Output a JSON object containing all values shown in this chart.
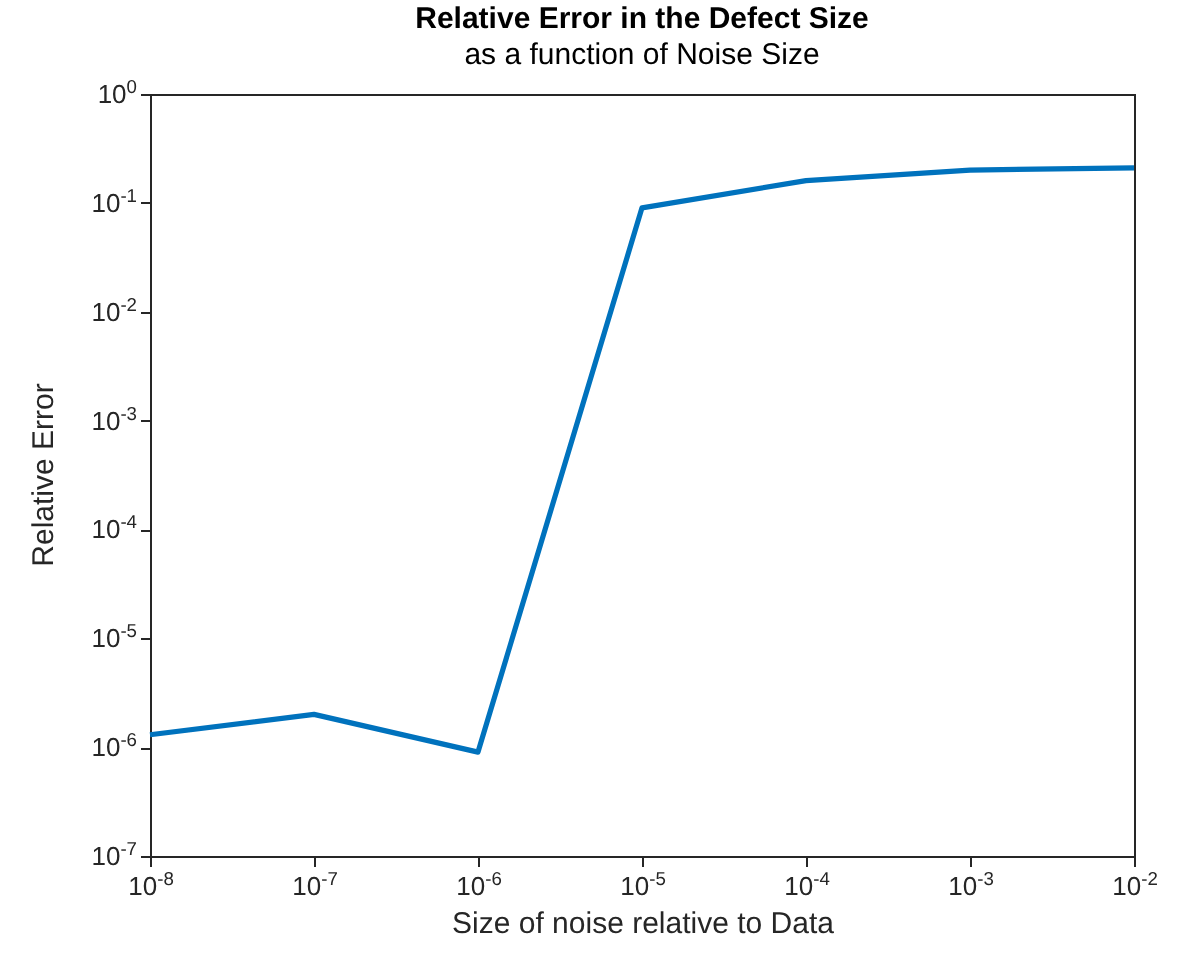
{
  "chart_data": {
    "type": "line",
    "title": "Relative Error in the Defect Size",
    "subtitle": "as a function of Noise Size",
    "xlabel": "Size of noise relative to Data",
    "ylabel": "Relative Error",
    "log": "xy",
    "grid": false,
    "marker": "none",
    "line_style": "solid",
    "x": [
      1e-08,
      1e-07,
      1e-06,
      1e-05,
      0.0001,
      0.001,
      0.01
    ],
    "series": [
      {
        "color": "#0072bd",
        "values": [
          1.3e-06,
          2e-06,
          9e-07,
          0.09,
          0.16,
          0.2,
          0.21
        ]
      }
    ],
    "xlim": [
      1e-08,
      0.01
    ],
    "ylim": [
      1e-07,
      1
    ],
    "xticks": [
      {
        "value": 1e-08,
        "label": "10$^{-8}$"
      },
      {
        "value": 1e-07,
        "label": "10$^{-7}$"
      },
      {
        "value": 1e-06,
        "label": "10$^{-6}$"
      },
      {
        "value": 1e-05,
        "label": "10$^{-5}$"
      },
      {
        "value": 0.0001,
        "label": "10$^{-4}$"
      },
      {
        "value": 0.001,
        "label": "10$^{-3}$"
      },
      {
        "value": 0.01,
        "label": "10$^{-2}$"
      }
    ],
    "yticks": [
      {
        "value": 1e-07,
        "label": "10$^{-7}$"
      },
      {
        "value": 1e-06,
        "label": "10$^{-6}$"
      },
      {
        "value": 1e-05,
        "label": "10$^{-5}$"
      },
      {
        "value": 0.0001,
        "label": "10$^{-4}$"
      },
      {
        "value": 0.001,
        "label": "10$^{-3}$"
      },
      {
        "value": 0.01,
        "label": "10$^{-2}$"
      },
      {
        "value": 0.1,
        "label": "10$^{-1}$"
      },
      {
        "value": 1,
        "label": "10$^{0}$"
      }
    ]
  }
}
